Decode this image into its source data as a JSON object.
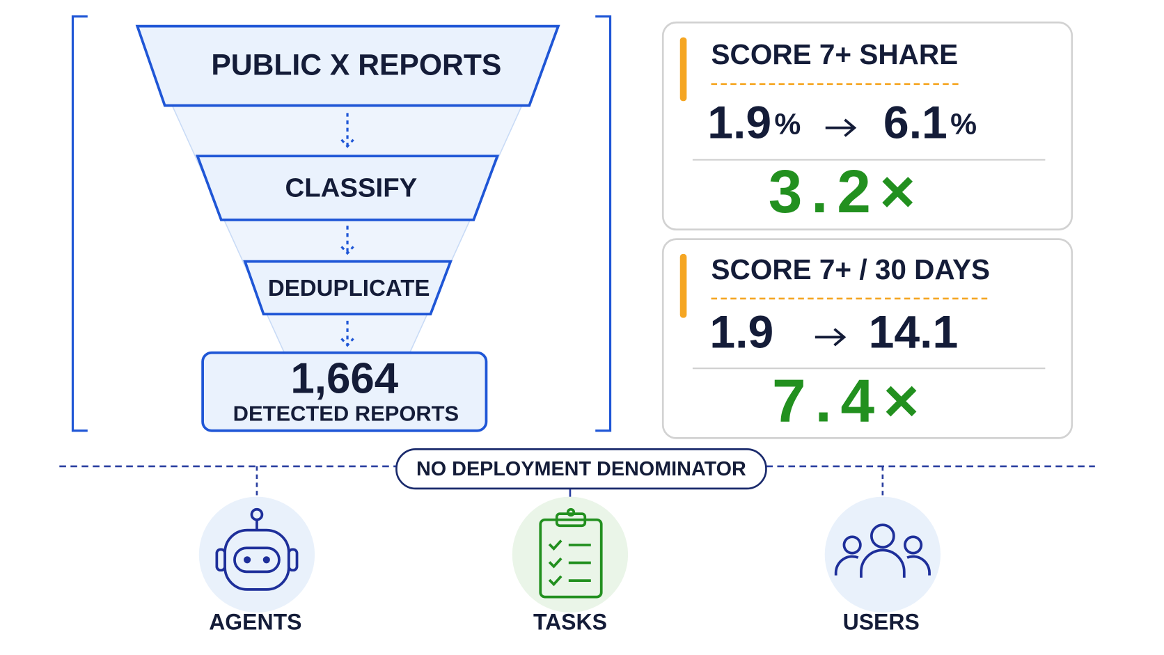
{
  "funnel": {
    "stages": [
      "PUBLIC X REPORTS",
      "CLASSIFY",
      "DEDUPLICATE"
    ],
    "result": {
      "value": "1,664",
      "label": "DETECTED REPORTS"
    }
  },
  "metrics": [
    {
      "title": "SCORE 7+ SHARE",
      "from": {
        "number": "1.9",
        "unit": "%"
      },
      "to": {
        "number": "6.1",
        "unit": "%"
      },
      "multiplier": "3.2×"
    },
    {
      "title": "SCORE 7+ / 30 DAYS",
      "from": {
        "number": "1.9"
      },
      "to": {
        "number": "14.1"
      },
      "multiplier": "7.4×"
    }
  ],
  "missing": {
    "label": "NO DEPLOYMENT DENOMINATOR",
    "items": [
      "AGENTS",
      "TASKS",
      "USERS"
    ]
  }
}
